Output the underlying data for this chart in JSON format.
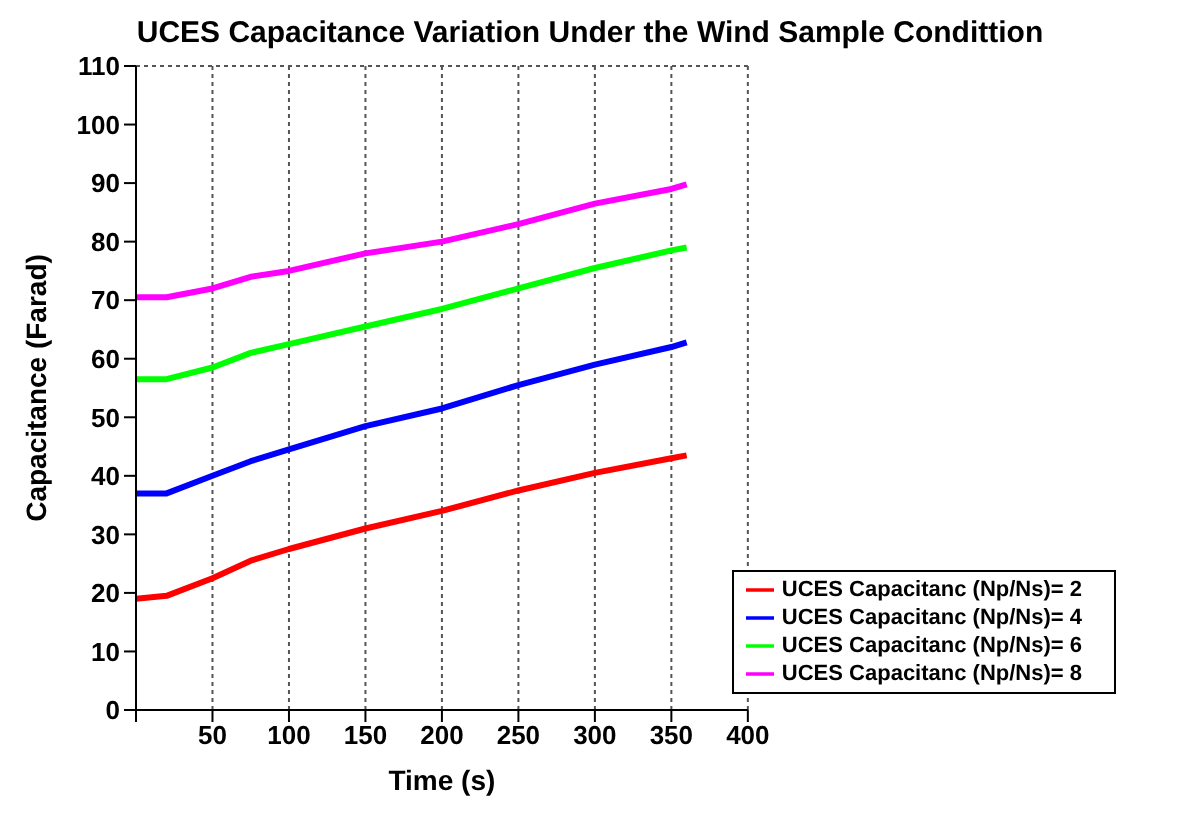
{
  "chart_data": {
    "type": "line",
    "title": "UCES Capacitance Variation Under the Wind Sample Condittion",
    "xlabel": "Time (s)",
    "ylabel": "Capacitance (Farad)",
    "xlim": [
      0,
      400
    ],
    "xticks": [
      {
        "value": 0,
        "label": null
      },
      50,
      100,
      150,
      200,
      250,
      300,
      350,
      400
    ],
    "ylim": [
      0,
      110
    ],
    "yticks": [
      0,
      10,
      20,
      30,
      40,
      50,
      60,
      70,
      80,
      90,
      100,
      110
    ],
    "grid": true,
    "legend": "bottom right",
    "marker": "none",
    "line_style": "solid",
    "x": [
      0,
      20,
      50,
      75,
      100,
      150,
      200,
      250,
      300,
      350,
      360
    ],
    "series": [
      {
        "name": "UCES Capacitanc (Np/Ns)= 8",
        "color": "#ff00ff",
        "values": [
          70.5,
          70.5,
          72,
          74,
          75,
          78,
          80,
          83,
          86.5,
          89,
          89.8
        ]
      },
      {
        "name": "UCES Capacitanc (Np/Ns)= 6",
        "color": "#00ff00",
        "values": [
          56.5,
          56.5,
          58.5,
          61,
          62.5,
          65.5,
          68.5,
          72,
          75.5,
          78.5,
          79
        ]
      },
      {
        "name": "UCES Capacitanc (Np/Ns)= 4",
        "color": "#0000ff",
        "values": [
          37,
          37,
          40,
          42.5,
          44.5,
          48.5,
          51.5,
          55.5,
          59,
          62,
          62.8
        ]
      },
      {
        "name": "UCES Capacitanc (Np/Ns)= 2",
        "color": "#ff0000",
        "values": [
          19,
          19.5,
          22.5,
          25.5,
          27.5,
          31,
          34,
          37.5,
          40.5,
          43,
          43.5
        ]
      }
    ]
  }
}
